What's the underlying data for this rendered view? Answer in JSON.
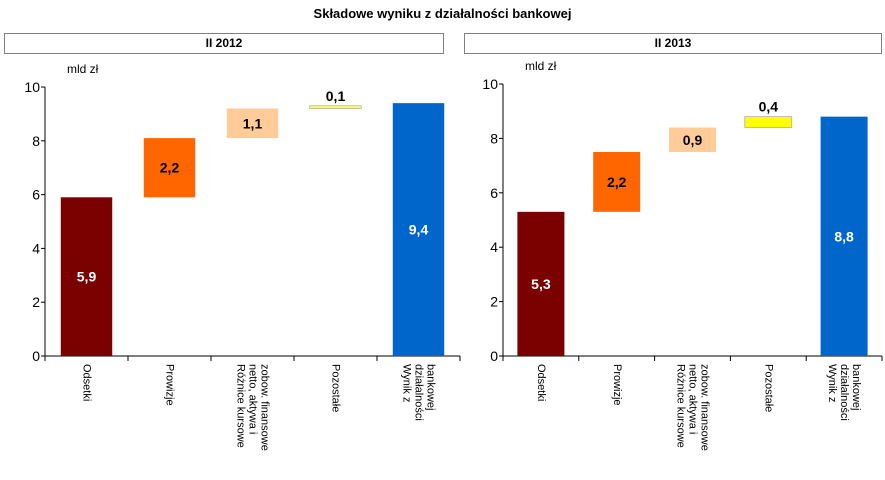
{
  "title": "Składowe wyniku z działalności bankowej",
  "chart_data": [
    {
      "type": "bar",
      "subtitle": "II 2012",
      "ylabel": "mld zł",
      "ylim": [
        0,
        10
      ],
      "yticks": [
        "0",
        "2",
        "4",
        "6",
        "8",
        "10"
      ],
      "categories": [
        [
          "Odsetki"
        ],
        [
          "Prowizje"
        ],
        [
          "Różnice kursowe",
          "netto, aktywa i",
          "zobow. finansowe"
        ],
        [
          "Pozostałe"
        ],
        [
          "Wynik z",
          "działalności",
          "bankowej"
        ]
      ],
      "bars": [
        {
          "base": 0,
          "value": 5.9,
          "label": "5,9",
          "color": "#7b0000",
          "label_color": "#ffffff"
        },
        {
          "base": 5.9,
          "value": 2.2,
          "label": "2,2",
          "color": "#ff6600",
          "label_color": "#000000"
        },
        {
          "base": 8.1,
          "value": 1.1,
          "label": "1,1",
          "color": "#ffcc99",
          "label_color": "#000000"
        },
        {
          "base": 9.2,
          "value": 0.1,
          "label": "0,1",
          "color": "#ffff66",
          "label_color": "#000000"
        },
        {
          "base": 0,
          "value": 9.4,
          "label": "9,4",
          "color": "#0066cc",
          "label_color": "#ffffff"
        }
      ]
    },
    {
      "type": "bar",
      "subtitle": "II 2013",
      "ylabel": "mld zł",
      "ylim": [
        0,
        10
      ],
      "yticks": [
        "0",
        "2",
        "4",
        "6",
        "8",
        "10"
      ],
      "categories": [
        [
          "Odsetki"
        ],
        [
          "Prowizje"
        ],
        [
          "Różnice kursowe",
          "netto, aktywa i",
          "zobow. finansowe"
        ],
        [
          "Pozostałe"
        ],
        [
          "Wynik z",
          "działalności",
          "bankowej"
        ]
      ],
      "bars": [
        {
          "base": 0,
          "value": 5.3,
          "label": "5,3",
          "color": "#7b0000",
          "label_color": "#ffffff"
        },
        {
          "base": 5.3,
          "value": 2.2,
          "label": "2,2",
          "color": "#ff6600",
          "label_color": "#000000"
        },
        {
          "base": 7.5,
          "value": 0.9,
          "label": "0,9",
          "color": "#ffcc99",
          "label_color": "#000000"
        },
        {
          "base": 8.4,
          "value": 0.4,
          "label": "0,4",
          "color": "#ffff00",
          "label_color": "#000000"
        },
        {
          "base": 0,
          "value": 8.8,
          "label": "8,8",
          "color": "#0066cc",
          "label_color": "#ffffff"
        }
      ]
    }
  ]
}
